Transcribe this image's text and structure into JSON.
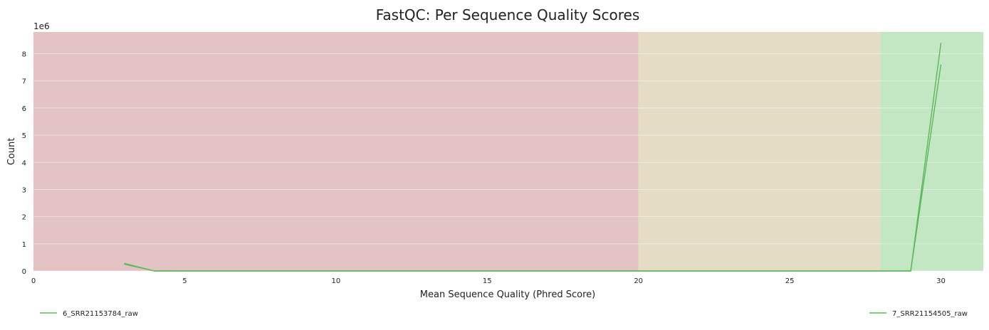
{
  "chart_data": {
    "type": "line",
    "title": "FastQC: Per Sequence Quality Scores",
    "xlabel": "Mean Sequence Quality (Phred Score)",
    "ylabel": "Count",
    "y_offset_label": "1e6",
    "y_scale": 1000000,
    "xlim": [
      0,
      31.4
    ],
    "ylim": [
      0,
      8800000
    ],
    "x_ticks": [
      0,
      5,
      10,
      15,
      20,
      25,
      30
    ],
    "y_ticks": [
      0,
      1000000,
      2000000,
      3000000,
      4000000,
      5000000,
      6000000,
      7000000,
      8000000
    ],
    "y_tick_labels": [
      "0",
      "1",
      "2",
      "3",
      "4",
      "5",
      "6",
      "7",
      "8"
    ],
    "grid": "horizontal",
    "bands": [
      {
        "x0": 0,
        "x1": 20,
        "color": "#e3c3c3"
      },
      {
        "x0": 20,
        "x1": 28,
        "color": "#e5dcc6"
      },
      {
        "x0": 28,
        "x1": 31.4,
        "color": "#c3e6c3"
      }
    ],
    "series": [
      {
        "name": "6_SRR21153784_raw",
        "color": "#5cb85c",
        "x": [
          3,
          4,
          29,
          30
        ],
        "y": [
          280000,
          0,
          0,
          8400000
        ]
      },
      {
        "name": "7_SRR21154505_raw",
        "color": "#5cb85c",
        "x": [
          3,
          4,
          29,
          30
        ],
        "y": [
          250000,
          0,
          0,
          7600000
        ]
      }
    ],
    "legend_position": "bottom"
  }
}
